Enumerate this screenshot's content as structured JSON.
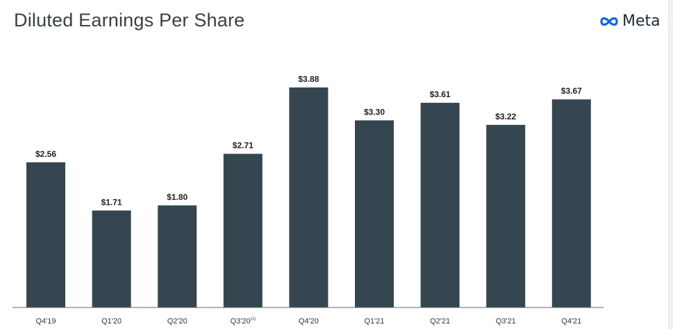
{
  "header": {
    "title": "Diluted Earnings Per Share",
    "brand": "Meta",
    "brand_icon": "meta-infinity-logo"
  },
  "colors": {
    "bar": "#354650",
    "axis": "#666666",
    "logo_blue": "#0668E1"
  },
  "chart_data": {
    "type": "bar",
    "title": "Diluted Earnings Per Share",
    "xlabel": "",
    "ylabel": "",
    "categories": [
      "Q4'19",
      "Q1'20",
      "Q2'20",
      "Q3'20",
      "Q4'20",
      "Q1'21",
      "Q2'21",
      "Q3'21",
      "Q4'21"
    ],
    "category_superscripts": [
      "",
      "",
      "",
      "(1)",
      "",
      "",
      "",
      "",
      ""
    ],
    "values": [
      2.56,
      1.71,
      1.8,
      2.71,
      3.88,
      3.3,
      3.61,
      3.22,
      3.67
    ],
    "value_labels": [
      "$2.56",
      "$1.71",
      "$1.80",
      "$2.71",
      "$3.88",
      "$3.30",
      "$3.61",
      "$3.22",
      "$3.67"
    ],
    "ylim": [
      0,
      3.88
    ],
    "grid": false,
    "legend": "none"
  }
}
